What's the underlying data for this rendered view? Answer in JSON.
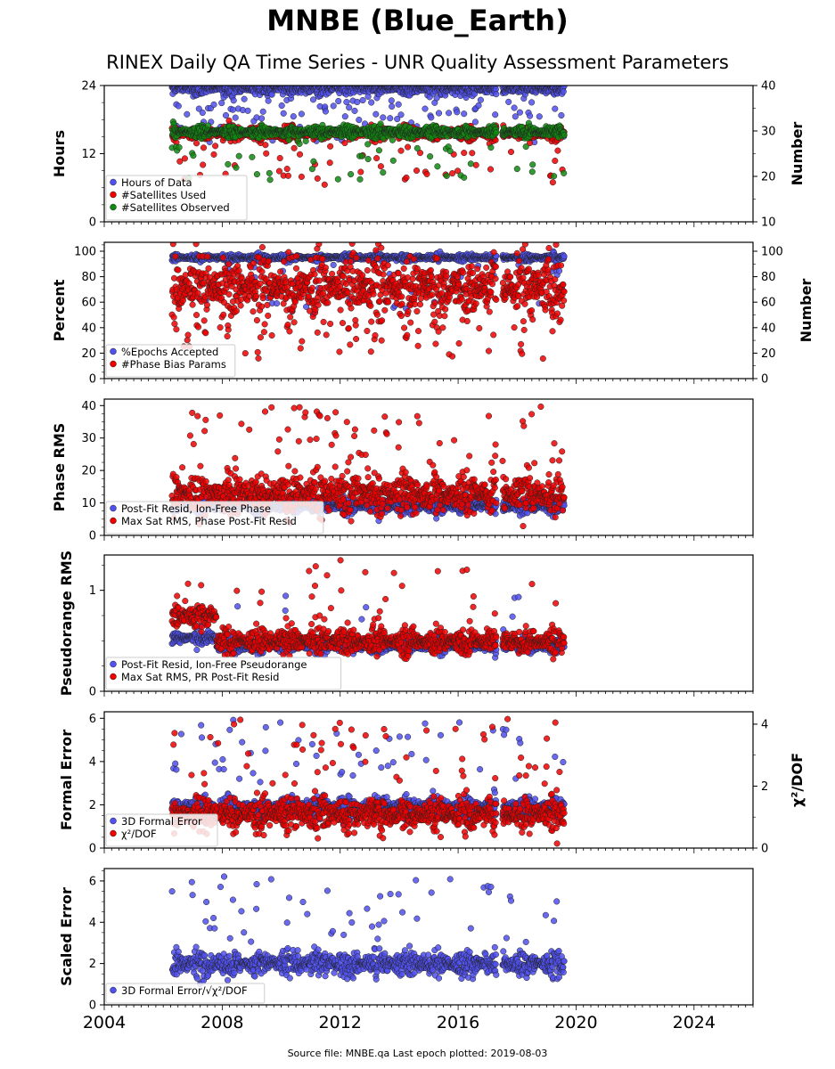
{
  "title": "MNBE (Blue_Earth)",
  "subtitle": "RINEX Daily QA Time Series - UNR Quality Assessment Parameters",
  "footer": "Source file: MNBE.qa Last epoch plotted: 2019-08-03",
  "colors": {
    "blue": "#5050ee",
    "red": "#ee0000",
    "green": "#118811",
    "edge": "#222222"
  },
  "chart_data": [
    {
      "type": "scatter",
      "id": "hours",
      "ylabel": "Hours",
      "ylim": [
        0,
        24
      ],
      "yticks": [
        0,
        12,
        24
      ],
      "y2label": "Number",
      "y2lim": [
        10,
        40
      ],
      "y2ticks": [
        10,
        20,
        30,
        40
      ],
      "xlim": [
        2004,
        2026
      ],
      "grid": false,
      "legend_position": "lower-left",
      "series": [
        {
          "name": "Hours of Data",
          "color": "blue",
          "axis": "left",
          "base": 23.5,
          "sd": 0.6,
          "out_low": 14,
          "out_high": 24,
          "out_p": 0.16,
          "clip_max": 24
        },
        {
          "name": "#Satellites Used",
          "color": "red",
          "axis": "right",
          "base": 29.5,
          "sd": 0.8,
          "out_low": 18,
          "out_high": 28,
          "out_p": 0.05
        },
        {
          "name": "#Satellites Observed",
          "color": "green",
          "axis": "right",
          "base": 29.8,
          "sd": 0.7,
          "out_low": 19,
          "out_high": 28,
          "out_p": 0.04
        }
      ]
    },
    {
      "type": "scatter",
      "id": "percent",
      "ylabel": "Percent",
      "ylim": [
        0,
        107
      ],
      "yticks": [
        0,
        20,
        40,
        60,
        80,
        100
      ],
      "y2label": "Number",
      "y2lim": [
        0,
        107
      ],
      "y2ticks": [
        0,
        20,
        40,
        60,
        80,
        100
      ],
      "xlim": [
        2004,
        2026
      ],
      "grid": false,
      "legend_position": "lower-left",
      "series": [
        {
          "name": "%Epochs Accepted",
          "color": "blue",
          "axis": "left",
          "base": 95,
          "sd": 1.5,
          "out_low": 50,
          "out_high": 92,
          "out_p": 0.04,
          "clip_max": 100
        },
        {
          "name": "#Phase Bias Params",
          "color": "red",
          "axis": "right",
          "base": 72,
          "sd": 14,
          "out_low": 15,
          "out_high": 45,
          "out_p": 0.05,
          "clip_max": 106
        }
      ]
    },
    {
      "type": "scatter",
      "id": "phase",
      "ylabel": "Phase RMS",
      "ylim": [
        0,
        42
      ],
      "yticks": [
        0,
        10,
        20,
        30,
        40
      ],
      "xlim": [
        2004,
        2026
      ],
      "grid": false,
      "legend_position": "lower-left",
      "series": [
        {
          "name": "Post-Fit Resid, Ion-Free Phase",
          "color": "blue",
          "axis": "left",
          "base": 9,
          "sd": 1.2,
          "out_low": 6,
          "out_high": 9,
          "out_p": 0.0
        },
        {
          "name": "Max Sat RMS, Phase Post-Fit Resid",
          "color": "red",
          "axis": "left",
          "base": 13,
          "sd": 3.5,
          "out_low": 20,
          "out_high": 40,
          "out_p": 0.06
        }
      ]
    },
    {
      "type": "scatter",
      "id": "pseudorange",
      "ylabel": "Pseudorange RMS",
      "ylim": [
        0,
        1.35
      ],
      "yticks": [
        0,
        1
      ],
      "xlim": [
        2004,
        2026
      ],
      "grid": false,
      "legend_position": "lower-left",
      "series": [
        {
          "name": "Post-Fit Resid, Ion-Free Pseudorange",
          "color": "blue",
          "axis": "left",
          "base": 0.45,
          "sd": 0.04,
          "out_low": 0.6,
          "out_high": 1.0,
          "out_p": 0.01
        },
        {
          "name": "Max Sat RMS, PR Post-Fit Resid",
          "color": "red",
          "axis": "left",
          "base": 0.5,
          "sd": 0.07,
          "out_low": 0.7,
          "out_high": 1.3,
          "out_p": 0.03
        }
      ]
    },
    {
      "type": "scatter",
      "id": "formal",
      "ylabel": "Formal Error",
      "ylim": [
        0,
        6.3
      ],
      "yticks": [
        0,
        2,
        4,
        6
      ],
      "y2label": "χ²/DOF",
      "y2lim": [
        0,
        4.4
      ],
      "y2ticks": [
        0,
        2,
        4
      ],
      "xlim": [
        2004,
        2026
      ],
      "grid": false,
      "legend_position": "lower-left",
      "series": [
        {
          "name": "3D Formal Error",
          "color": "blue",
          "axis": "left",
          "base": 1.9,
          "sd": 0.25,
          "out_low": 3,
          "out_high": 6,
          "out_p": 0.04
        },
        {
          "name": "χ²/DOF",
          "color": "red",
          "axis": "right",
          "base": 1.1,
          "sd": 0.3,
          "out_low": 2,
          "out_high": 4.2,
          "out_p": 0.05
        }
      ]
    },
    {
      "type": "scatter",
      "id": "scaled",
      "ylabel": "Scaled Error",
      "ylim": [
        0,
        6.6
      ],
      "yticks": [
        0,
        2,
        4,
        6
      ],
      "xlim": [
        2004,
        2026
      ],
      "xticks": [
        2004,
        2008,
        2012,
        2016,
        2020,
        2024
      ],
      "grid": false,
      "legend_position": "lower-left",
      "series": [
        {
          "name": "3D Formal Error/√χ²/DOF",
          "color": "blue",
          "axis": "left",
          "base": 2.0,
          "sd": 0.35,
          "out_low": 3,
          "out_high": 6.3,
          "out_p": 0.04
        }
      ]
    }
  ],
  "data_span": {
    "start": 2006.3,
    "end": 2019.6,
    "gap_start": 2017.3,
    "gap_end": 2017.5
  }
}
